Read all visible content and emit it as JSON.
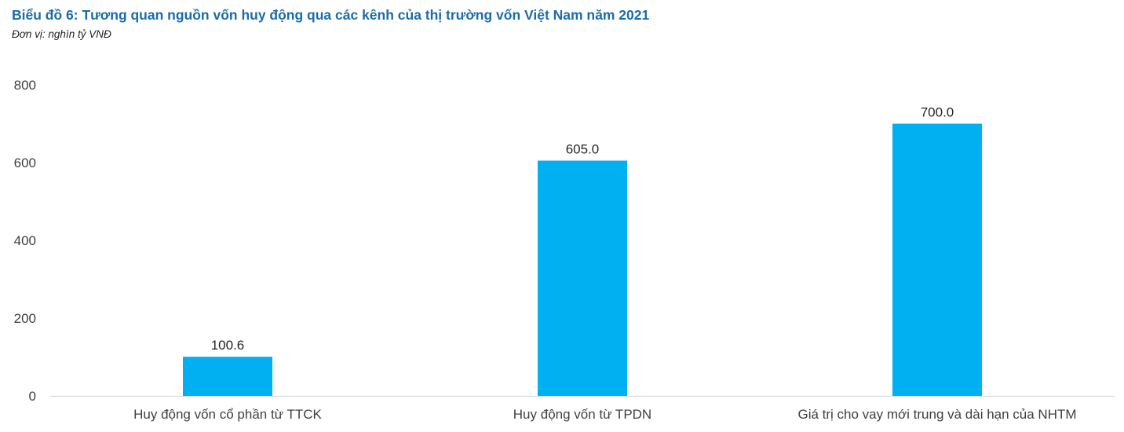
{
  "chart_data": {
    "type": "bar",
    "title": "Biểu đồ 6: Tương quan nguồn vốn huy động qua các kênh của thị trường vốn Việt Nam năm 2021",
    "subtitle": "Đơn vị: nghìn tỷ VNĐ",
    "categories": [
      "Huy động vốn cổ phần từ TTCK",
      "Huy động vốn từ TPDN",
      "Giá trị cho vay mới trung và dài hạn của NHTM"
    ],
    "values": [
      100.6,
      605.0,
      700.0
    ],
    "data_labels": [
      "100.6",
      "605.0",
      "700.0"
    ],
    "ylim": [
      0,
      800
    ],
    "yticks": [
      0,
      200,
      400,
      600,
      800
    ],
    "ytick_labels": [
      "0",
      "200",
      "400",
      "600",
      "800"
    ],
    "xlabel": "",
    "ylabel": "",
    "grid": false,
    "legend": "none",
    "bar_color": "#00b0f0",
    "axis_color": "#d9d9d9",
    "title_color": "#1a6ca8",
    "label_color": "#404040"
  }
}
